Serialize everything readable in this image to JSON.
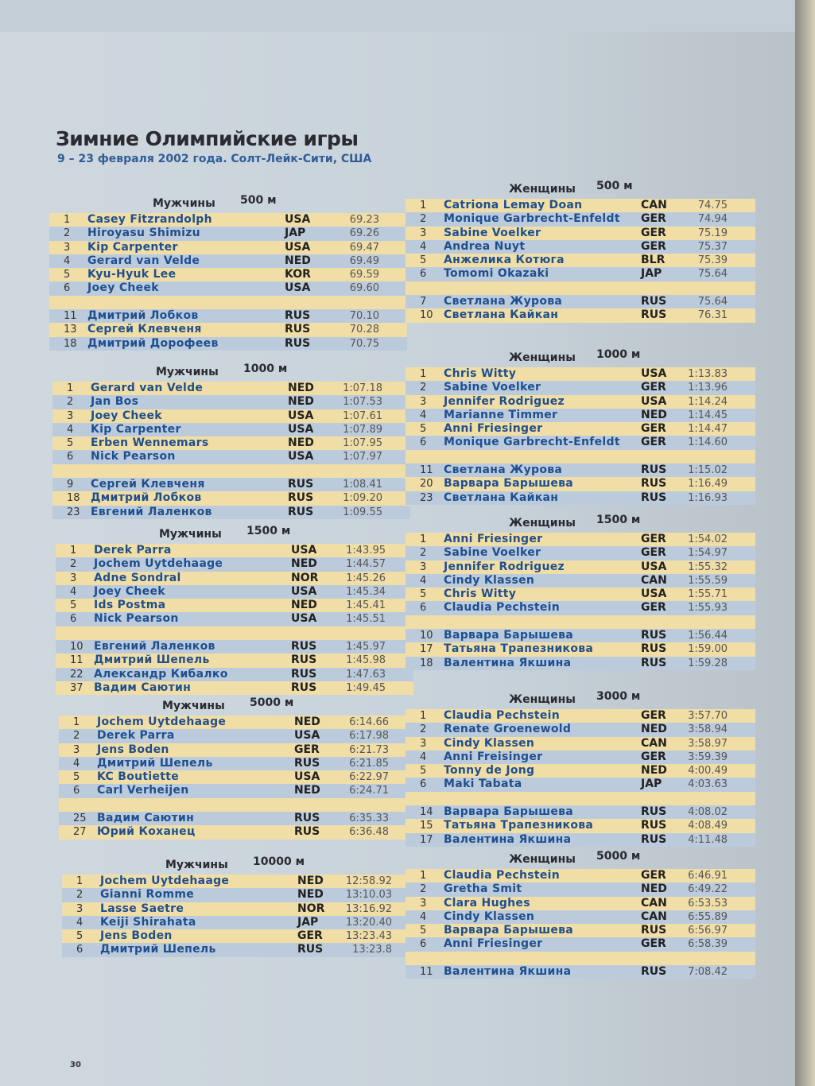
{
  "title": "Зимние Олимпийские игры",
  "subtitle": "9 – 23 февраля 2002 года. Солт-Лейк-Сити, США",
  "page_number": "30",
  "men": [
    {
      "gender": "Мужчины",
      "distance": "500 м",
      "rows": [
        [
          "1",
          "Casey Fitzrandolph",
          "USA",
          "69.23"
        ],
        [
          "2",
          "Hiroyasu Shimizu",
          "JAP",
          "69.26"
        ],
        [
          "3",
          "Kip Carpenter",
          "USA",
          "69.47"
        ],
        [
          "4",
          "Gerard van Velde",
          "NED",
          "69.49"
        ],
        [
          "5",
          "Kyu-Hyuk Lee",
          "KOR",
          "69.59"
        ],
        [
          "6",
          "Joey Cheek",
          "USA",
          "69.60"
        ]
      ],
      "extra": [
        [
          "11",
          "Дмитрий Лобков",
          "RUS",
          "70.10"
        ],
        [
          "13",
          "Сергей Клевченя",
          "RUS",
          "70.28"
        ],
        [
          "18",
          "Дмитрий Дорофеев",
          "RUS",
          "70.75"
        ]
      ]
    },
    {
      "gender": "Мужчины",
      "distance": "1000 м",
      "rows": [
        [
          "1",
          "Gerard van Velde",
          "NED",
          "1:07.18"
        ],
        [
          "2",
          "Jan Bos",
          "NED",
          "1:07.53"
        ],
        [
          "3",
          "Joey Cheek",
          "USA",
          "1:07.61"
        ],
        [
          "4",
          "Kip Carpenter",
          "USA",
          "1:07.89"
        ],
        [
          "5",
          "Erben Wennemars",
          "NED",
          "1:07.95"
        ],
        [
          "6",
          "Nick Pearson",
          "USA",
          "1:07.97"
        ]
      ],
      "extra": [
        [
          "9",
          "Сергей Клевченя",
          "RUS",
          "1:08.41"
        ],
        [
          "18",
          "Дмитрий Лобков",
          "RUS",
          "1:09.20"
        ],
        [
          "23",
          "Евгений Лаленков",
          "RUS",
          "1:09.55"
        ]
      ]
    },
    {
      "gender": "Мужчины",
      "distance": "1500 м",
      "rows": [
        [
          "1",
          "Derek Parra",
          "USA",
          "1:43.95"
        ],
        [
          "2",
          "Jochem Uytdehaage",
          "NED",
          "1:44.57"
        ],
        [
          "3",
          "Adne Sondral",
          "NOR",
          "1:45.26"
        ],
        [
          "4",
          "Joey Cheek",
          "USA",
          "1:45.34"
        ],
        [
          "5",
          "Ids Postma",
          "NED",
          "1:45.41"
        ],
        [
          "6",
          "Nick Pearson",
          "USA",
          "1:45.51"
        ]
      ],
      "extra": [
        [
          "10",
          "Евгений Лаленков",
          "RUS",
          "1:45.97"
        ],
        [
          "11",
          "Дмитрий Шепель",
          "RUS",
          "1:45.98"
        ],
        [
          "22",
          "Александр Кибалко",
          "RUS",
          "1:47.63"
        ],
        [
          "37",
          "Вадим Саютин",
          "RUS",
          "1:49.45"
        ]
      ]
    },
    {
      "gender": "Мужчины",
      "distance": "5000 м",
      "rows": [
        [
          "1",
          "Jochem Uytdehaage",
          "NED",
          "6:14.66"
        ],
        [
          "2",
          "Derek Parra",
          "USA",
          "6:17.98"
        ],
        [
          "3",
          "Jens Boden",
          "GER",
          "6:21.73"
        ],
        [
          "4",
          "Дмитрий Шепель",
          "RUS",
          "6:21.85"
        ],
        [
          "5",
          "KC Boutiette",
          "USA",
          "6:22.97"
        ],
        [
          "6",
          "Carl Verheijen",
          "NED",
          "6:24.71"
        ]
      ],
      "extra": [
        [
          "25",
          "Вадим Саютин",
          "RUS",
          "6:35.33"
        ],
        [
          "27",
          "Юрий Коханец",
          "RUS",
          "6:36.48"
        ]
      ]
    },
    {
      "gender": "Мужчины",
      "distance": "10000 м",
      "rows": [
        [
          "1",
          "Jochem Uytdehaage",
          "NED",
          "12:58.92"
        ],
        [
          "2",
          "Gianni Romme",
          "NED",
          "13:10.03"
        ],
        [
          "3",
          "Lasse Saetre",
          "NOR",
          "13:16.92"
        ],
        [
          "4",
          "Keiji Shirahata",
          "JAP",
          "13:20.40"
        ],
        [
          "5",
          "Jens Boden",
          "GER",
          "13:23.43"
        ],
        [
          "6",
          "Дмитрий Шепель",
          "RUS",
          "13:23.8"
        ]
      ],
      "extra": []
    }
  ],
  "women": [
    {
      "gender": "Женщины",
      "distance": "500 м",
      "rows": [
        [
          "1",
          "Catriona Lemay Doan",
          "CAN",
          "74.75"
        ],
        [
          "2",
          "Monique Garbrecht-Enfeldt",
          "GER",
          "74.94"
        ],
        [
          "3",
          "Sabine Voelker",
          "GER",
          "75.19"
        ],
        [
          "4",
          "Andrea Nuyt",
          "GER",
          "75.37"
        ],
        [
          "5",
          "Анжелика Котюга",
          "BLR",
          "75.39"
        ],
        [
          "6",
          "Tomomi Okazaki",
          "JAP",
          "75.64"
        ]
      ],
      "extra": [
        [
          "7",
          "Светлана Журова",
          "RUS",
          "75.64"
        ],
        [
          "10",
          "Светлана Кайкан",
          "RUS",
          "76.31"
        ]
      ]
    },
    {
      "gender": "Женщины",
      "distance": "1000 м",
      "rows": [
        [
          "1",
          "Chris Witty",
          "USA",
          "1:13.83"
        ],
        [
          "2",
          "Sabine Voelker",
          "GER",
          "1:13.96"
        ],
        [
          "3",
          "Jennifer Rodriguez",
          "USA",
          "1:14.24"
        ],
        [
          "4",
          "Marianne Timmer",
          "NED",
          "1:14.45"
        ],
        [
          "5",
          "Anni Friesinger",
          "GER",
          "1:14.47"
        ],
        [
          "6",
          "Monique Garbrecht-Enfeldt",
          "GER",
          "1:14.60"
        ]
      ],
      "extra": [
        [
          "11",
          "Светлана Журова",
          "RUS",
          "1:15.02"
        ],
        [
          "20",
          "Варвара Барышева",
          "RUS",
          "1:16.49"
        ],
        [
          "23",
          "Светлана Кайкан",
          "RUS",
          "1:16.93"
        ]
      ]
    },
    {
      "gender": "Женщины",
      "distance": "1500 м",
      "rows": [
        [
          "1",
          "Anni Friesinger",
          "GER",
          "1:54.02"
        ],
        [
          "2",
          "Sabine Voelker",
          "GER",
          "1:54.97"
        ],
        [
          "3",
          "Jennifer Rodriguez",
          "USA",
          "1:55.32"
        ],
        [
          "4",
          "Cindy Klassen",
          "CAN",
          "1:55.59"
        ],
        [
          "5",
          "Chris Witty",
          "USA",
          "1:55.71"
        ],
        [
          "6",
          "Claudia Pechstein",
          "GER",
          "1:55.93"
        ]
      ],
      "extra": [
        [
          "10",
          "Варвара Барышева",
          "RUS",
          "1:56.44"
        ],
        [
          "17",
          "Татьяна Трапезникова",
          "RUS",
          "1:59.00"
        ],
        [
          "18",
          "Валентина Якшина",
          "RUS",
          "1:59.28"
        ]
      ]
    },
    {
      "gender": "Женщины",
      "distance": "3000 м",
      "rows": [
        [
          "1",
          "Claudia Pechstein",
          "GER",
          "3:57.70"
        ],
        [
          "2",
          "Renate Groenewold",
          "NED",
          "3:58.94"
        ],
        [
          "3",
          "Cindy Klassen",
          "CAN",
          "3:58.97"
        ],
        [
          "4",
          "Anni Freisinger",
          "GER",
          "3:59.39"
        ],
        [
          "5",
          "Tonny de Jong",
          "NED",
          "4:00.49"
        ],
        [
          "6",
          "Maki Tabata",
          "JAP",
          "4:03.63"
        ]
      ],
      "extra": [
        [
          "14",
          "Варвара Барышева",
          "RUS",
          "4:08.02"
        ],
        [
          "15",
          "Татьяна Трапезникова",
          "RUS",
          "4:08.49"
        ],
        [
          "17",
          "Валентина Якшина",
          "RUS",
          "4:11.48"
        ]
      ]
    },
    {
      "gender": "Женщины",
      "distance": "5000 м",
      "rows": [
        [
          "1",
          "Claudia Pechstein",
          "GER",
          "6:46.91"
        ],
        [
          "2",
          "Gretha Smit",
          "NED",
          "6:49.22"
        ],
        [
          "3",
          "Clara Hughes",
          "CAN",
          "6:53.53"
        ],
        [
          "4",
          "Cindy Klassen",
          "CAN",
          "6:55.89"
        ],
        [
          "5",
          "Варвара Барышева",
          "RUS",
          "6:56.97"
        ],
        [
          "6",
          "Anni Friesinger",
          "GER",
          "6:58.39"
        ]
      ],
      "extra": [
        [
          "11",
          "Валентина Якшина",
          "RUS",
          "7:08.42"
        ]
      ]
    }
  ]
}
